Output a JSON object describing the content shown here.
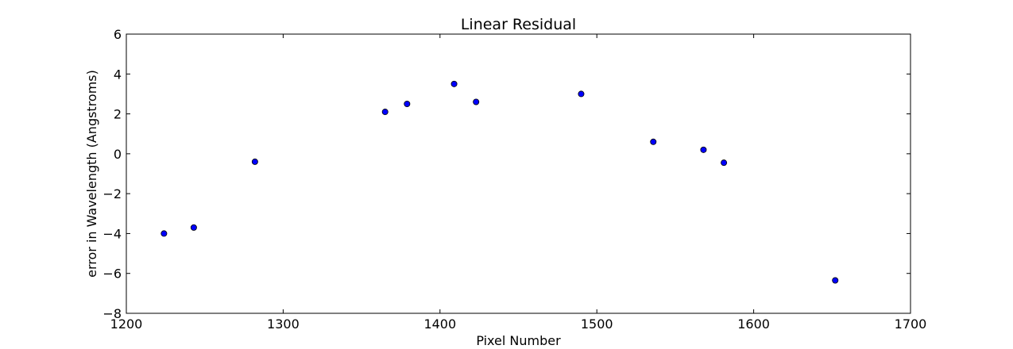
{
  "chart_data": {
    "type": "scatter",
    "title": "Linear Residual",
    "xlabel": "Pixel Number",
    "ylabel": "error in Wavelength (Angstroms)",
    "xlim": [
      1200,
      1700
    ],
    "ylim": [
      -8,
      6
    ],
    "xticks": [
      1200,
      1300,
      1400,
      1500,
      1600,
      1700
    ],
    "yticks": [
      -8,
      -6,
      -4,
      -2,
      0,
      2,
      4,
      6
    ],
    "grid": false,
    "point_color": "#0000ff",
    "series": [
      {
        "x": [
          1224,
          1243,
          1282,
          1365,
          1379,
          1409,
          1423,
          1490,
          1536,
          1568,
          1581,
          1652
        ],
        "y": [
          -4.0,
          -3.7,
          -0.4,
          2.1,
          2.5,
          3.5,
          2.6,
          3.0,
          0.6,
          0.2,
          -0.45,
          -6.35
        ]
      }
    ]
  }
}
